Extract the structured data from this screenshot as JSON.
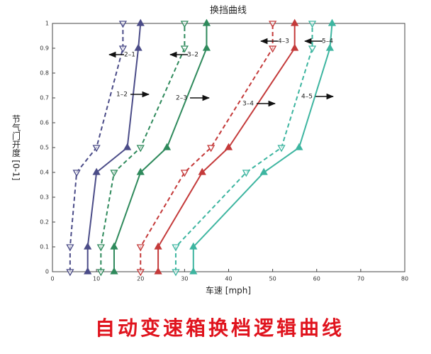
{
  "chart_data": {
    "type": "line",
    "title": "换挡曲线",
    "x_label": "车速 [mph]",
    "y_label": "节气门开度 [0-1]",
    "caption": "自动变速箱换档逻辑曲线",
    "xlim": [
      0,
      80
    ],
    "xticks": [
      0,
      10,
      20,
      30,
      40,
      50,
      60,
      70,
      80
    ],
    "ylim": [
      0,
      1
    ],
    "yticks": [
      0,
      0.1,
      0.2,
      0.3,
      0.4,
      0.5,
      0.6,
      0.7,
      0.8,
      0.9,
      1
    ],
    "grid": false,
    "series": [
      {
        "name": "1–2",
        "color": "#4b4c88",
        "linestyle": "solid",
        "marker": "up",
        "x": [
          8,
          8,
          10,
          17,
          19.5,
          20
        ],
        "values": [
          0,
          0.1,
          0.4,
          0.5,
          0.9,
          1
        ]
      },
      {
        "name": "2–3",
        "color": "#2f8a5c",
        "linestyle": "solid",
        "marker": "up",
        "x": [
          14,
          14,
          20,
          26,
          35,
          35
        ],
        "values": [
          0,
          0.1,
          0.4,
          0.5,
          0.9,
          1
        ]
      },
      {
        "name": "3–4",
        "color": "#c43a3a",
        "linestyle": "solid",
        "marker": "up",
        "x": [
          24,
          24,
          34,
          40,
          55,
          55
        ],
        "values": [
          0,
          0.1,
          0.4,
          0.5,
          0.9,
          1
        ]
      },
      {
        "name": "4–5",
        "color": "#3db5a0",
        "linestyle": "solid",
        "marker": "up",
        "x": [
          32,
          32,
          48,
          56,
          63,
          63.5
        ],
        "values": [
          0,
          0.1,
          0.4,
          0.5,
          0.9,
          1
        ]
      },
      {
        "name": "2–1",
        "color": "#4b4c88",
        "linestyle": "dashed",
        "marker": "down",
        "x": [
          4,
          4,
          5.5,
          10,
          16,
          16
        ],
        "values": [
          0,
          0.1,
          0.4,
          0.5,
          0.9,
          1
        ]
      },
      {
        "name": "3–2",
        "color": "#2f8a5c",
        "linestyle": "dashed",
        "marker": "down",
        "x": [
          11,
          11,
          14,
          20,
          30,
          30
        ],
        "values": [
          0,
          0.1,
          0.4,
          0.5,
          0.9,
          1
        ]
      },
      {
        "name": "4–3",
        "color": "#c43a3a",
        "linestyle": "dashed",
        "marker": "down",
        "x": [
          20,
          20,
          30,
          36,
          50,
          50
        ],
        "values": [
          0,
          0.1,
          0.4,
          0.5,
          0.9,
          1
        ]
      },
      {
        "name": "5–4",
        "color": "#3db5a0",
        "linestyle": "dashed",
        "marker": "down",
        "x": [
          28,
          28,
          44,
          52,
          59,
          59
        ],
        "values": [
          0,
          0.1,
          0.4,
          0.5,
          0.9,
          1
        ]
      }
    ]
  }
}
